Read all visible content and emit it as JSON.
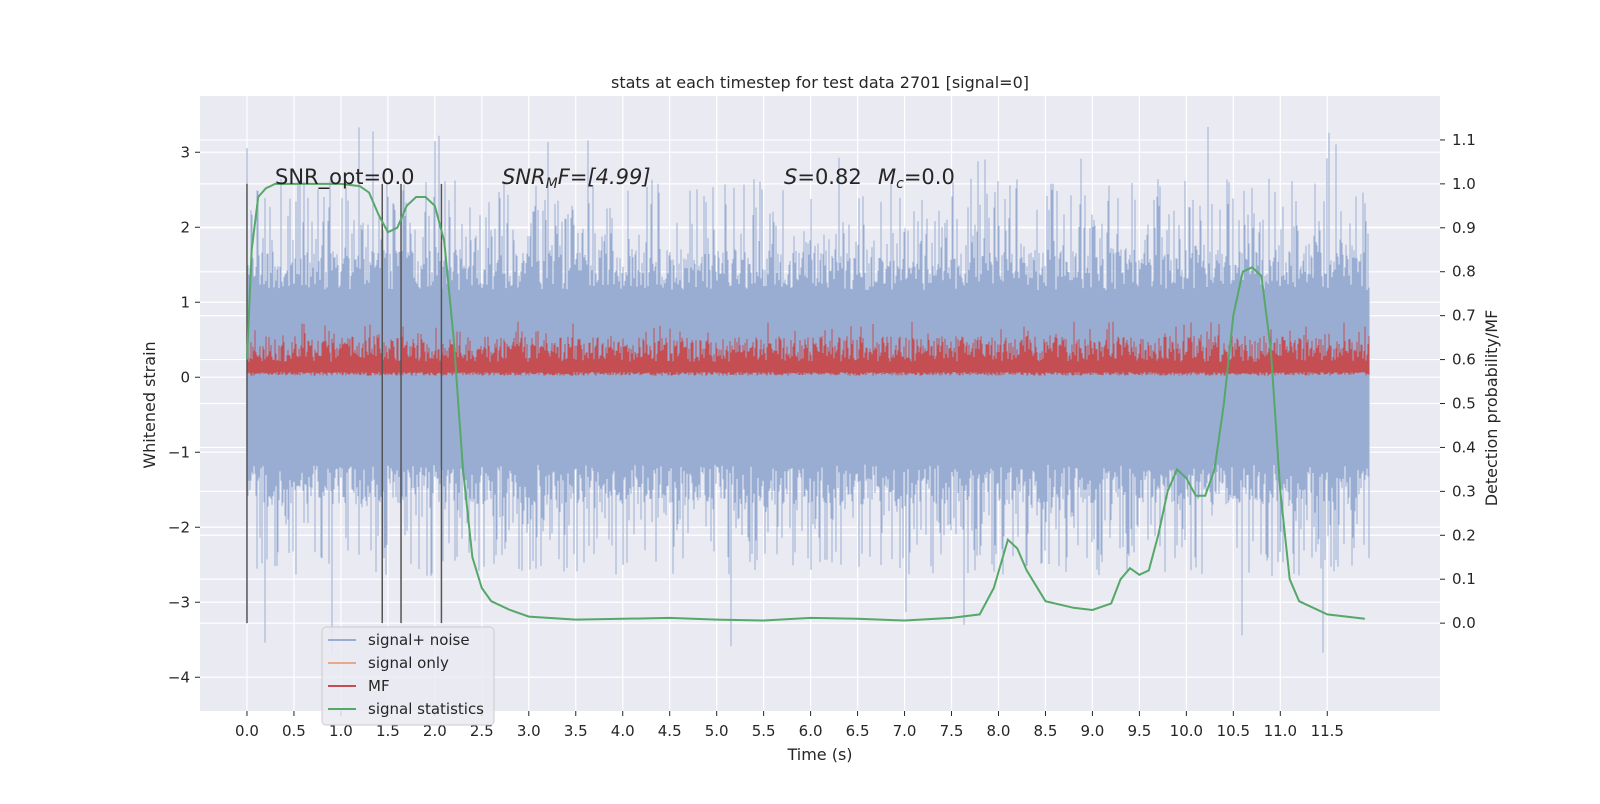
{
  "chart_data": {
    "type": "line",
    "title": "stats at each timestep for test data 2701 [signal=0]",
    "xlabel": "Time (s)",
    "ylabel": "Whitened strain",
    "y2label": "Detection probability/MF",
    "xlim": [
      -0.5,
      12.7
    ],
    "ylim": [
      -4.45,
      3.75
    ],
    "y2lim": [
      -0.2,
      1.2
    ],
    "xticks": [
      "0.0",
      "0.5",
      "1.0",
      "1.5",
      "2.0",
      "2.5",
      "3.0",
      "3.5",
      "4.0",
      "4.5",
      "5.0",
      "5.5",
      "6.0",
      "6.5",
      "7.0",
      "7.5",
      "8.0",
      "8.5",
      "9.0",
      "9.5",
      "10.0",
      "10.5",
      "11.0",
      "11.5"
    ],
    "yticks": [
      "3",
      "2",
      "1",
      "0",
      "−1",
      "−2",
      "−3",
      "−4"
    ],
    "y2ticks": [
      "1.1",
      "1.0",
      "0.9",
      "0.8",
      "0.7",
      "0.6",
      "0.5",
      "0.4",
      "0.3",
      "0.2",
      "0.1",
      "0.0"
    ],
    "grid": true,
    "legend_position": "lower-left",
    "colors": {
      "background": "#eaeaf2",
      "grid": "#ffffff",
      "noise": "#99add2",
      "signal_only": "#e8a98a",
      "mf": "#c44e52",
      "stats": "#55a868",
      "vlines": "#555555"
    },
    "annotations": {
      "snr_opt": "SNR_opt=0.0",
      "snr_mf": "SNR",
      "snr_mf_sub": "M",
      "snr_mf_rest": "F=[4.99]",
      "s_label": "S",
      "s_value": "=0.82",
      "mc_label": "M",
      "mc_sub": "c",
      "mc_value": "=0.0"
    },
    "vertical_lines": [
      0.0,
      1.44,
      1.64,
      2.07
    ],
    "series": [
      {
        "name": "signal+ noise",
        "kind": "noise band",
        "x_range": [
          0.0,
          11.95
        ],
        "band_y": [
          -1.55,
          1.55
        ],
        "max_abs_peak": 3.35
      },
      {
        "name": "signal only",
        "values_note": "flat at 0"
      },
      {
        "name": "MF",
        "kind": "noise band",
        "x_range": [
          0.0,
          11.95
        ],
        "band_y": [
          0.02,
          0.55
        ]
      },
      {
        "name": "signal statistics",
        "axis": "right",
        "x": [
          0.0,
          0.05,
          0.12,
          0.2,
          0.3,
          0.5,
          0.8,
          1.0,
          1.2,
          1.3,
          1.4,
          1.5,
          1.6,
          1.7,
          1.8,
          1.9,
          2.0,
          2.1,
          2.2,
          2.3,
          2.4,
          2.5,
          2.6,
          2.8,
          3.0,
          3.5,
          4.0,
          4.5,
          5.0,
          5.5,
          6.0,
          6.5,
          7.0,
          7.5,
          7.8,
          7.95,
          8.1,
          8.2,
          8.3,
          8.5,
          8.8,
          9.0,
          9.2,
          9.3,
          9.4,
          9.5,
          9.6,
          9.7,
          9.8,
          9.9,
          10.0,
          10.1,
          10.2,
          10.3,
          10.4,
          10.5,
          10.6,
          10.7,
          10.8,
          10.9,
          11.0,
          11.1,
          11.2,
          11.5,
          11.9
        ],
        "values": [
          0.6,
          0.85,
          0.97,
          0.99,
          1.0,
          1.0,
          1.0,
          1.0,
          0.995,
          0.98,
          0.93,
          0.89,
          0.9,
          0.95,
          0.97,
          0.97,
          0.95,
          0.87,
          0.65,
          0.35,
          0.15,
          0.08,
          0.05,
          0.03,
          0.015,
          0.008,
          0.01,
          0.012,
          0.008,
          0.006,
          0.012,
          0.01,
          0.006,
          0.012,
          0.02,
          0.08,
          0.19,
          0.17,
          0.12,
          0.05,
          0.035,
          0.03,
          0.045,
          0.1,
          0.125,
          0.11,
          0.12,
          0.2,
          0.3,
          0.35,
          0.33,
          0.29,
          0.29,
          0.35,
          0.5,
          0.7,
          0.8,
          0.81,
          0.79,
          0.62,
          0.3,
          0.1,
          0.05,
          0.02,
          0.01
        ]
      }
    ]
  }
}
